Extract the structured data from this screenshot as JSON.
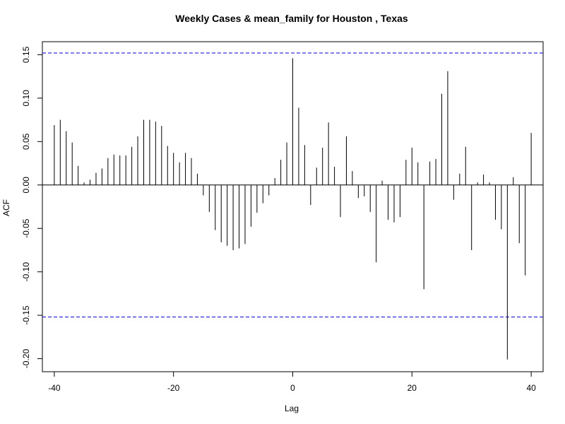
{
  "chart_data": {
    "type": "bar",
    "title": "Weekly Cases & mean_family for Houston , Texas",
    "xlabel": "Lag",
    "ylabel": "ACF",
    "xlim": [
      -42,
      42
    ],
    "ylim": [
      -0.215,
      0.165
    ],
    "x_ticks": [
      -40,
      -20,
      0,
      20,
      40
    ],
    "y_ticks": [
      -0.2,
      -0.15,
      -0.1,
      -0.05,
      0.0,
      0.05,
      0.1,
      0.15
    ],
    "x_tick_labels": [
      "-40",
      "-20",
      "0",
      "20",
      "40"
    ],
    "y_tick_labels": [
      "-0.20",
      "-0.15",
      "-0.10",
      "-0.05",
      "0.00",
      "0.05",
      "0.10",
      "0.15"
    ],
    "confidence_bound": 0.152,
    "confidence_color": "#0000cc",
    "grid": false,
    "legend": "none",
    "lags": [
      -40,
      -39,
      -38,
      -37,
      -36,
      -35,
      -34,
      -33,
      -32,
      -31,
      -30,
      -29,
      -28,
      -27,
      -26,
      -25,
      -24,
      -23,
      -22,
      -21,
      -20,
      -19,
      -18,
      -17,
      -16,
      -15,
      -14,
      -13,
      -12,
      -11,
      -10,
      -9,
      -8,
      -7,
      -6,
      -5,
      -4,
      -3,
      -2,
      -1,
      0,
      1,
      2,
      3,
      4,
      5,
      6,
      7,
      8,
      9,
      10,
      11,
      12,
      13,
      14,
      15,
      16,
      17,
      18,
      19,
      20,
      21,
      22,
      23,
      24,
      25,
      26,
      27,
      28,
      29,
      30,
      31,
      32,
      33,
      34,
      35,
      36,
      37,
      38,
      39,
      40
    ],
    "values": [
      0.069,
      0.075,
      0.062,
      0.049,
      0.022,
      0.003,
      0.006,
      0.014,
      0.019,
      0.031,
      0.035,
      0.034,
      0.034,
      0.044,
      0.056,
      0.075,
      0.075,
      0.073,
      0.068,
      0.045,
      0.037,
      0.026,
      0.037,
      0.031,
      0.013,
      -0.012,
      -0.031,
      -0.052,
      -0.066,
      -0.07,
      -0.075,
      -0.073,
      -0.068,
      -0.048,
      -0.032,
      -0.021,
      -0.012,
      0.008,
      0.029,
      0.049,
      0.146,
      0.089,
      0.046,
      -0.023,
      0.02,
      0.043,
      0.072,
      0.021,
      -0.037,
      0.056,
      0.016,
      -0.015,
      -0.013,
      -0.031,
      -0.089,
      0.005,
      -0.04,
      -0.043,
      -0.037,
      0.029,
      0.043,
      0.026,
      -0.12,
      0.027,
      0.03,
      0.105,
      0.131,
      -0.017,
      0.013,
      0.044,
      -0.075,
      0.003,
      0.012,
      0.003,
      -0.04,
      -0.051,
      -0.201,
      0.009,
      -0.067,
      -0.104,
      0.06
    ]
  }
}
